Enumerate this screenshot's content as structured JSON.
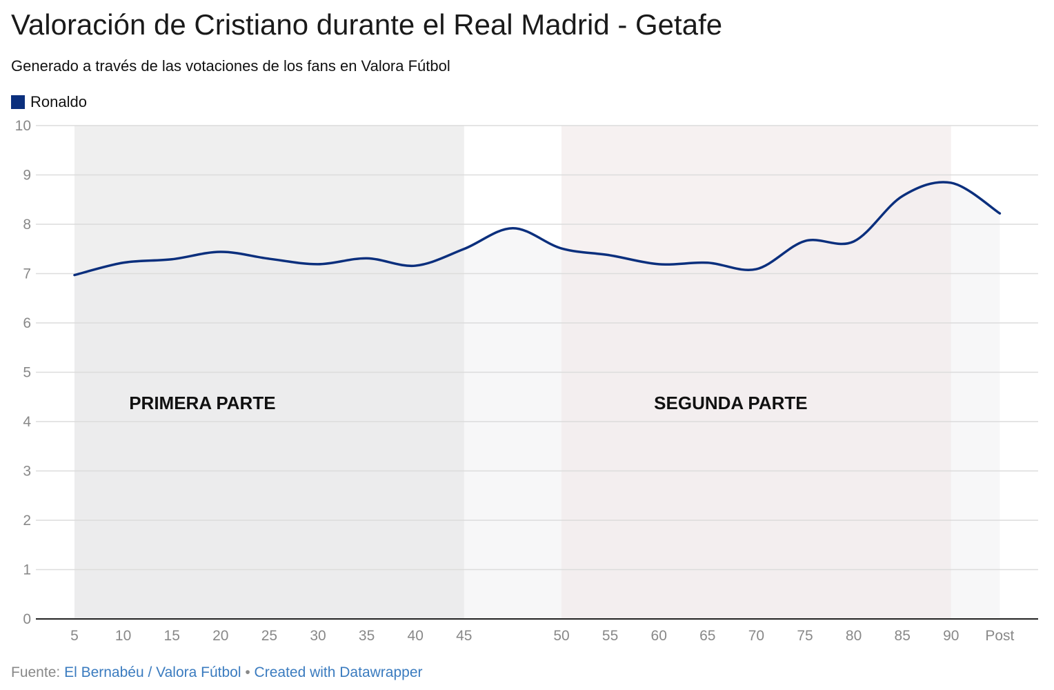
{
  "header": {
    "title": "Valoración de Cristiano durante el Real Madrid - Getafe",
    "subtitle": "Generado a través de las votaciones de los fans en Valora Fútbol"
  },
  "chart_data": {
    "type": "line",
    "title": "Valoración de Cristiano durante el Real Madrid - Getafe",
    "subtitle": "Generado a través de las votaciones de los fans en Valora Fútbol",
    "categories": [
      "5",
      "10",
      "15",
      "20",
      "25",
      "30",
      "35",
      "40",
      "45",
      "",
      "50",
      "55",
      "60",
      "65",
      "70",
      "75",
      "80",
      "85",
      "90",
      "Post"
    ],
    "series": [
      {
        "name": "Ronaldo",
        "color": "#0b2f7d",
        "values": [
          6.97,
          7.22,
          7.29,
          7.44,
          7.3,
          7.19,
          7.31,
          7.16,
          7.5,
          7.92,
          7.51,
          7.37,
          7.19,
          7.22,
          7.09,
          7.66,
          7.65,
          8.57,
          8.84,
          8.22
        ]
      }
    ],
    "ylim": [
      0,
      10
    ],
    "yticks": [
      "0",
      "1",
      "2",
      "3",
      "4",
      "5",
      "6",
      "7",
      "8",
      "9",
      "10"
    ],
    "grid": true,
    "legend": "top-left",
    "annotations": [
      {
        "label": "PRIMERA PARTE",
        "from": "5",
        "to": "45",
        "color": "#e6e6e6"
      },
      {
        "label": "SEGUNDA PARTE",
        "from": "50",
        "to": "90",
        "color": "#f1eaea"
      }
    ]
  },
  "footer": {
    "source_label": "Fuente:",
    "source": "El Bernabéu / Valora Fútbol",
    "separator": "•",
    "credit": "Created with Datawrapper"
  }
}
